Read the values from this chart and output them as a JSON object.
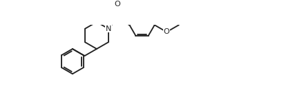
{
  "background": "#ffffff",
  "lc": "#222222",
  "lw": 1.35,
  "fs": 8.0,
  "figsize": [
    4.24,
    1.38
  ],
  "dpi": 100,
  "xlim": [
    -0.3,
    8.8
  ],
  "ylim": [
    -0.2,
    2.7
  ]
}
